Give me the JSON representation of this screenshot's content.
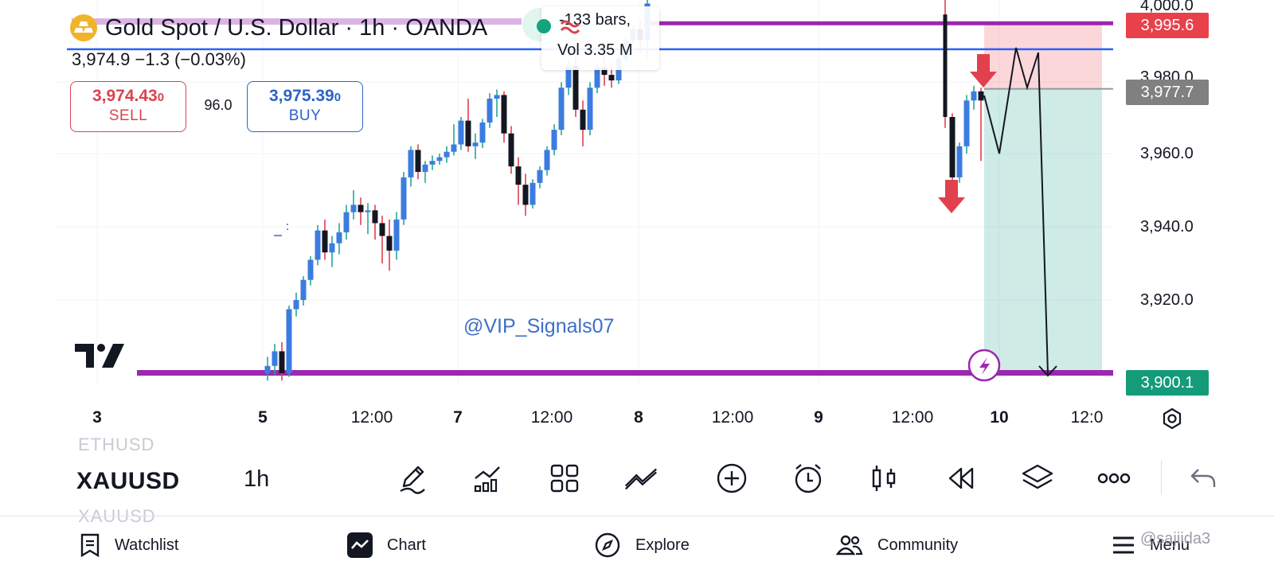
{
  "header": {
    "symbol_title": "Gold Spot / U.S. Dollar · 1h · OANDA",
    "price_line": "3,974.9  −1.3 (−0.03%)",
    "logo_icon": "gold-bars-icon",
    "sell": {
      "price_main": "3,974.43",
      "price_small": "0",
      "label": "SELL",
      "color": "#d9434f"
    },
    "buy": {
      "price_main": "3,975.39",
      "price_small": "0",
      "label": "BUY",
      "color": "#2e64c4"
    },
    "spread": "96.0"
  },
  "tooltip": {
    "bars": "-133 bars,",
    "vol": "Vol 3.35 M"
  },
  "watermark": "@VIP_Signals07",
  "price_axis": {
    "labels": [
      "4,000.0",
      "3,980.0",
      "3,960.0",
      "3,940.0",
      "3,920.0"
    ],
    "tag_top": "3,995.6",
    "tag_mid": "3,977.7",
    "tag_bot": "3,900.1",
    "tag_colors": {
      "top": "#e8414b",
      "mid": "#808080",
      "bot": "#149b7a"
    }
  },
  "time_axis": [
    {
      "label": "3",
      "bold": true
    },
    {
      "label": "5",
      "bold": true
    },
    {
      "label": "12:00",
      "bold": false
    },
    {
      "label": "7",
      "bold": true
    },
    {
      "label": "12:00",
      "bold": false
    },
    {
      "label": "8",
      "bold": true
    },
    {
      "label": "12:00",
      "bold": false
    },
    {
      "label": "9",
      "bold": true
    },
    {
      "label": "12:00",
      "bold": false
    },
    {
      "label": "10",
      "bold": true
    },
    {
      "label": "12:0",
      "bold": false
    }
  ],
  "toolbar": {
    "symbol_prev": "ETHUSD",
    "symbol": "XAUUSD",
    "symbol_next": "XAUUSD",
    "interval": "1h",
    "tools": [
      "pencil-icon",
      "indicators-icon",
      "layouts-icon",
      "trend-line-icon",
      "add-circle-icon",
      "alarm-icon",
      "candles-icon",
      "replay-icon",
      "layers-icon",
      "more-icon",
      "undo-icon"
    ]
  },
  "bottom_nav": [
    {
      "label": "Watchlist",
      "icon": "watchlist-icon"
    },
    {
      "label": "Chart",
      "icon": "chart-icon"
    },
    {
      "label": "Explore",
      "icon": "compass-icon"
    },
    {
      "label": "Community",
      "icon": "community-icon"
    },
    {
      "label": "Menu",
      "icon": "menu-icon"
    }
  ],
  "user_watermark": "@sajiida3",
  "chart_data": {
    "type": "candlestick",
    "symbol": "XAUUSD",
    "interval": "1h",
    "ylim": [
      3898,
      4004
    ],
    "candles": [
      [
        3900.0,
        3904.5,
        3898.0,
        3902.0
      ],
      [
        3902.0,
        3908.0,
        3899.5,
        3906.0
      ],
      [
        3906.0,
        3908.5,
        3898.0,
        3900.0
      ],
      [
        3900.0,
        3918.5,
        3899.0,
        3917.5
      ],
      [
        3917.5,
        3922.0,
        3915.5,
        3920.0
      ],
      [
        3920.0,
        3926.5,
        3918.5,
        3925.5
      ],
      [
        3925.5,
        3932.0,
        3924.0,
        3931.0
      ],
      [
        3931.0,
        3940.5,
        3929.5,
        3939.0
      ],
      [
        3939.0,
        3942.0,
        3931.0,
        3933.0
      ],
      [
        3933.0,
        3937.5,
        3929.0,
        3935.5
      ],
      [
        3935.5,
        3941.0,
        3932.5,
        3938.5
      ],
      [
        3938.5,
        3946.0,
        3936.5,
        3944.0
      ],
      [
        3944.0,
        3950.0,
        3942.0,
        3946.0
      ],
      [
        3946.0,
        3948.0,
        3940.5,
        3944.0
      ],
      [
        3944.0,
        3946.5,
        3938.0,
        3944.5
      ],
      [
        3944.5,
        3946.0,
        3936.5,
        3941.0
      ],
      [
        3941.0,
        3943.0,
        3930.0,
        3937.5
      ],
      [
        3937.5,
        3942.0,
        3928.0,
        3933.5
      ],
      [
        3933.5,
        3944.0,
        3931.0,
        3942.0
      ],
      [
        3942.0,
        3955.0,
        3940.5,
        3953.5
      ],
      [
        3953.5,
        3962.0,
        3951.0,
        3961.0
      ],
      [
        3961.0,
        3962.5,
        3953.0,
        3955.0
      ],
      [
        3955.0,
        3958.0,
        3952.0,
        3957.0
      ],
      [
        3957.0,
        3959.5,
        3955.5,
        3958.0
      ],
      [
        3958.0,
        3960.0,
        3957.0,
        3959.0
      ],
      [
        3959.0,
        3962.0,
        3957.5,
        3960.5
      ],
      [
        3960.5,
        3968.0,
        3959.5,
        3962.5
      ],
      [
        3962.5,
        3970.0,
        3961.0,
        3969.0
      ],
      [
        3969.0,
        3975.0,
        3960.5,
        3962.0
      ],
      [
        3962.0,
        3965.5,
        3958.5,
        3963.0
      ],
      [
        3963.0,
        3969.5,
        3961.5,
        3968.5
      ],
      [
        3968.5,
        3976.5,
        3967.0,
        3975.0
      ],
      [
        3975.0,
        3977.5,
        3970.0,
        3976.0
      ],
      [
        3976.0,
        3977.0,
        3963.0,
        3965.5
      ],
      [
        3965.5,
        3967.5,
        3954.5,
        3956.5
      ],
      [
        3956.5,
        3959.0,
        3946.0,
        3951.5
      ],
      [
        3951.5,
        3954.5,
        3943.0,
        3946.0
      ],
      [
        3946.0,
        3953.0,
        3945.0,
        3952.0
      ],
      [
        3952.0,
        3956.5,
        3950.5,
        3955.5
      ],
      [
        3955.5,
        3962.0,
        3954.0,
        3961.0
      ],
      [
        3961.0,
        3968.0,
        3959.5,
        3966.5
      ],
      [
        3966.5,
        3979.5,
        3965.0,
        3978.0
      ],
      [
        3978.0,
        3985.5,
        3976.0,
        3984.0
      ],
      [
        3984.0,
        3987.0,
        3970.0,
        3972.0
      ],
      [
        3972.0,
        3974.5,
        3962.0,
        3966.5
      ],
      [
        3966.5,
        3979.5,
        3965.0,
        3978.0
      ],
      [
        3978.0,
        3984.5,
        3976.5,
        3983.5
      ],
      [
        3983.5,
        3987.0,
        3978.5,
        3981.5
      ],
      [
        3981.5,
        3985.0,
        3978.0,
        3980.0
      ],
      [
        3980.0,
        3986.5,
        3979.0,
        3986.0
      ],
      [
        3986.0,
        3992.0,
        3985.0,
        3991.0
      ],
      [
        3991.0,
        3995.0,
        3990.0,
        3994.0
      ],
      [
        3994.0,
        3996.5,
        3987.5,
        3991.0
      ],
      [
        3991.0,
        4004.0,
        3986.0,
        4001.0
      ]
    ],
    "candles_day10": [
      [
        3998.0,
        4004.0,
        3967.0,
        3970.0
      ],
      [
        3970.0,
        3971.0,
        3951.0,
        3953.5
      ],
      [
        3953.5,
        3963.0,
        3952.0,
        3962.0
      ],
      [
        3962.0,
        3976.0,
        3960.0,
        3974.5
      ],
      [
        3974.5,
        3978.5,
        3972.0,
        3977.0
      ],
      [
        3977.0,
        3978.0,
        3958.0,
        3974.5
      ]
    ],
    "horizontal_lines": [
      {
        "price": 3995.6,
        "color": "#9c27b0"
      },
      {
        "price": 3988.5,
        "color": "#2962ff"
      },
      {
        "price": 3900.1,
        "color": "#9c27b0"
      }
    ],
    "position": {
      "entry": 3977.7,
      "stop": 3995.6,
      "target": 3900.1
    }
  }
}
